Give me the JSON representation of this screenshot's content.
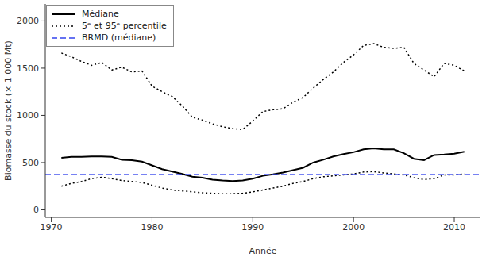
{
  "chart_data": {
    "type": "line",
    "x_label": "Année",
    "y_label": "Biomasse du stock (× 1 000 Mt)",
    "x": [
      1971,
      1972,
      1973,
      1974,
      1975,
      1976,
      1977,
      1978,
      1979,
      1980,
      1981,
      1982,
      1983,
      1984,
      1985,
      1986,
      1987,
      1988,
      1989,
      1990,
      1991,
      1992,
      1993,
      1994,
      1995,
      1996,
      1997,
      1998,
      1999,
      2000,
      2001,
      2002,
      2003,
      2004,
      2005,
      2006,
      2007,
      2008,
      2009,
      2010,
      2011
    ],
    "xlim": [
      1969.4,
      2012.6
    ],
    "xticks": [
      1970,
      1980,
      1990,
      2000,
      2010
    ],
    "ylim": [
      -80,
      2180
    ],
    "yticks": [
      0,
      500,
      1000,
      1500,
      2000
    ],
    "legend": "top-left",
    "series": [
      {
        "name": "Médiane",
        "color": "#000000",
        "line_style": "solid",
        "values": [
          550,
          560,
          560,
          565,
          565,
          560,
          530,
          525,
          510,
          470,
          430,
          405,
          380,
          350,
          340,
          320,
          310,
          305,
          310,
          330,
          360,
          375,
          395,
          420,
          445,
          500,
          530,
          565,
          590,
          610,
          640,
          650,
          640,
          640,
          600,
          540,
          525,
          580,
          585,
          595,
          615
        ]
      },
      {
        "name": "5ᵉ et 95ᵉ percentile",
        "color": "#000000",
        "line_style": "dotted",
        "values": [
          1660,
          1620,
          1570,
          1530,
          1560,
          1480,
          1510,
          1460,
          1470,
          1310,
          1250,
          1200,
          1100,
          980,
          950,
          910,
          880,
          860,
          850,
          940,
          1040,
          1060,
          1070,
          1140,
          1190,
          1290,
          1380,
          1460,
          1560,
          1640,
          1740,
          1760,
          1720,
          1710,
          1720,
          1550,
          1480,
          1410,
          1550,
          1530,
          1470
        ]
      },
      {
        "name": "5ᵉ et 95ᵉ percentile",
        "color": "#000000",
        "line_style": "dotted",
        "values": [
          250,
          280,
          300,
          330,
          345,
          330,
          310,
          300,
          290,
          260,
          230,
          210,
          200,
          190,
          180,
          175,
          170,
          170,
          175,
          190,
          210,
          230,
          250,
          280,
          300,
          330,
          350,
          360,
          370,
          380,
          400,
          405,
          390,
          380,
          370,
          340,
          320,
          330,
          370,
          370,
          380
        ]
      },
      {
        "name": "BRMD (médiane)",
        "type": "hline",
        "color": "#3344ee",
        "line_style": "dashed",
        "value": 375
      }
    ]
  }
}
